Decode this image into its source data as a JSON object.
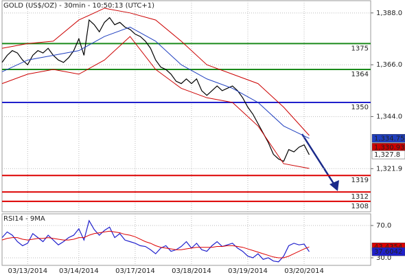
{
  "chart_data": [
    {
      "type": "line",
      "title": "GOLD (US$/OZ) - 30min - 10:50:13 (UTC+1)",
      "x": [
        0,
        1,
        2,
        3,
        4,
        5,
        6,
        7,
        8,
        9,
        10,
        11,
        12,
        13,
        14,
        15,
        16,
        17,
        18,
        19,
        20,
        21,
        22,
        23,
        24,
        25,
        26,
        27,
        28,
        29,
        30,
        31,
        32,
        33,
        34,
        35,
        36,
        37,
        38,
        39,
        40,
        41,
        42,
        43,
        44,
        45,
        46,
        47,
        48,
        49,
        50,
        51,
        52,
        53,
        54,
        55,
        56,
        57,
        58,
        59,
        60
      ],
      "xlim": [
        0,
        72
      ],
      "series": [
        {
          "color": "#000000",
          "values": [
            1367,
            1370,
            1372,
            1371,
            1368,
            1366,
            1370,
            1372,
            1371,
            1373,
            1370,
            1368,
            1367,
            1369,
            1372,
            1377,
            1370,
            1385,
            1383,
            1380,
            1384,
            1386,
            1383,
            1384,
            1382,
            1381,
            1379,
            1378,
            1376,
            1373,
            1368,
            1365,
            1364,
            1362,
            1359,
            1358,
            1360,
            1358,
            1360,
            1355,
            1353,
            1355,
            1357,
            1355,
            1356,
            1357,
            1355,
            1352,
            1348,
            1345,
            1341,
            1337,
            1333,
            1328,
            1326,
            1325,
            1330,
            1329,
            1331,
            1332,
            1327.8
          ]
        },
        {
          "color": "#cc0000",
          "x": [
            0,
            5,
            10,
            15,
            20,
            25,
            30,
            35,
            40,
            45,
            50,
            55,
            60
          ],
          "values": [
            1373,
            1375,
            1376,
            1385,
            1390,
            1388,
            1385,
            1376,
            1366,
            1362,
            1358,
            1348,
            1336
          ]
        },
        {
          "color": "#1f3fbf",
          "x": [
            0,
            5,
            10,
            15,
            20,
            25,
            30,
            35,
            40,
            45,
            50,
            55,
            60
          ],
          "values": [
            1363,
            1368,
            1370,
            1372,
            1378,
            1382,
            1376,
            1366,
            1360,
            1356,
            1350,
            1340,
            1334.75
          ]
        },
        {
          "color": "#cc0000",
          "x": [
            0,
            5,
            10,
            15,
            20,
            25,
            30,
            35,
            40,
            45,
            50,
            55,
            60
          ],
          "values": [
            1358,
            1362,
            1364,
            1362,
            1368,
            1378,
            1364,
            1356,
            1352,
            1350,
            1340,
            1324,
            1322
          ]
        }
      ],
      "ylim": [
        1303.6,
        1393.2
      ],
      "yticks": [
        {
          "value": 1388,
          "label": "1,388.0"
        },
        {
          "value": 1366,
          "label": "1,366.0"
        },
        {
          "value": 1344,
          "label": "1,344.0"
        },
        {
          "value": 1321.9,
          "label": "1,321.9"
        }
      ],
      "levels": [
        {
          "value": 1375,
          "label": "1375",
          "color": "#1a8a1a"
        },
        {
          "value": 1364,
          "label": "1364",
          "color": "#1a8a1a"
        },
        {
          "value": 1350,
          "label": "1350",
          "color": "#1f1fcc"
        },
        {
          "value": 1319,
          "label": "1319",
          "color": "#dd0000"
        },
        {
          "value": 1312,
          "label": "1312",
          "color": "#dd0000"
        },
        {
          "value": 1308,
          "label": "1308",
          "color": "#dd0000"
        }
      ],
      "price_labels": [
        {
          "value": 1334.75,
          "label": "1,334.75",
          "color": "#1f3fbf"
        },
        {
          "value": 1330.93,
          "label": "1,330.93",
          "color": "#cc0000"
        },
        {
          "value": 1327.8,
          "label": "1,327.8",
          "color": "#ffffff"
        }
      ],
      "grid": true
    },
    {
      "type": "line",
      "title": "RSI14 - 9MA",
      "x": [
        0,
        1,
        2,
        3,
        4,
        5,
        6,
        7,
        8,
        9,
        10,
        11,
        12,
        13,
        14,
        15,
        16,
        17,
        18,
        19,
        20,
        21,
        22,
        23,
        24,
        25,
        26,
        27,
        28,
        29,
        30,
        31,
        32,
        33,
        34,
        35,
        36,
        37,
        38,
        39,
        40,
        41,
        42,
        43,
        44,
        45,
        46,
        47,
        48,
        49,
        50,
        51,
        52,
        53,
        54,
        55,
        56,
        57,
        58,
        59,
        60
      ],
      "xlim": [
        0,
        72
      ],
      "xticks": [
        {
          "value": 5,
          "label": "03/13/2014"
        },
        {
          "value": 15,
          "label": "03/14/2014"
        },
        {
          "value": 26,
          "label": "03/17/2014"
        },
        {
          "value": 37,
          "label": "03/18/2014"
        },
        {
          "value": 48,
          "label": "03/19/2014"
        },
        {
          "value": 59,
          "label": "03/20/2014"
        }
      ],
      "series": [
        {
          "color": "#1f1fcc",
          "values": [
            55,
            62,
            58,
            50,
            45,
            48,
            60,
            55,
            50,
            58,
            52,
            46,
            50,
            55,
            58,
            66,
            52,
            76,
            65,
            58,
            64,
            68,
            55,
            60,
            52,
            50,
            48,
            45,
            44,
            40,
            35,
            42,
            45,
            38,
            40,
            44,
            50,
            42,
            48,
            40,
            38,
            45,
            50,
            44,
            46,
            48,
            42,
            38,
            32,
            30,
            35,
            28,
            30,
            26,
            25,
            32,
            45,
            48,
            46,
            47,
            37.6042
          ]
        },
        {
          "color": "#dd0000",
          "values": [
            52,
            54,
            55,
            55,
            53,
            52,
            53,
            54,
            54,
            55,
            54,
            53,
            52,
            52,
            53,
            55,
            55,
            58,
            60,
            61,
            62,
            63,
            62,
            61,
            59,
            58,
            56,
            53,
            50,
            48,
            45,
            43,
            42,
            41,
            40,
            40,
            41,
            42,
            43,
            43,
            43,
            43,
            44,
            44,
            45,
            45,
            44,
            43,
            41,
            39,
            37,
            35,
            33,
            31,
            30,
            30,
            32,
            35,
            38,
            41,
            43.4354
          ]
        }
      ],
      "ylim": [
        20.6,
        84.5
      ],
      "yticks": [
        {
          "value": 70,
          "label": "70.0"
        },
        {
          "value": 30,
          "label": "30.0"
        }
      ],
      "end_labels": [
        {
          "value": 43.4354,
          "label": "43.4354",
          "color": "#dd0000"
        },
        {
          "value": 37.6042,
          "label": "37.6042",
          "color": "#1f1fcc"
        }
      ],
      "grid": true
    }
  ]
}
